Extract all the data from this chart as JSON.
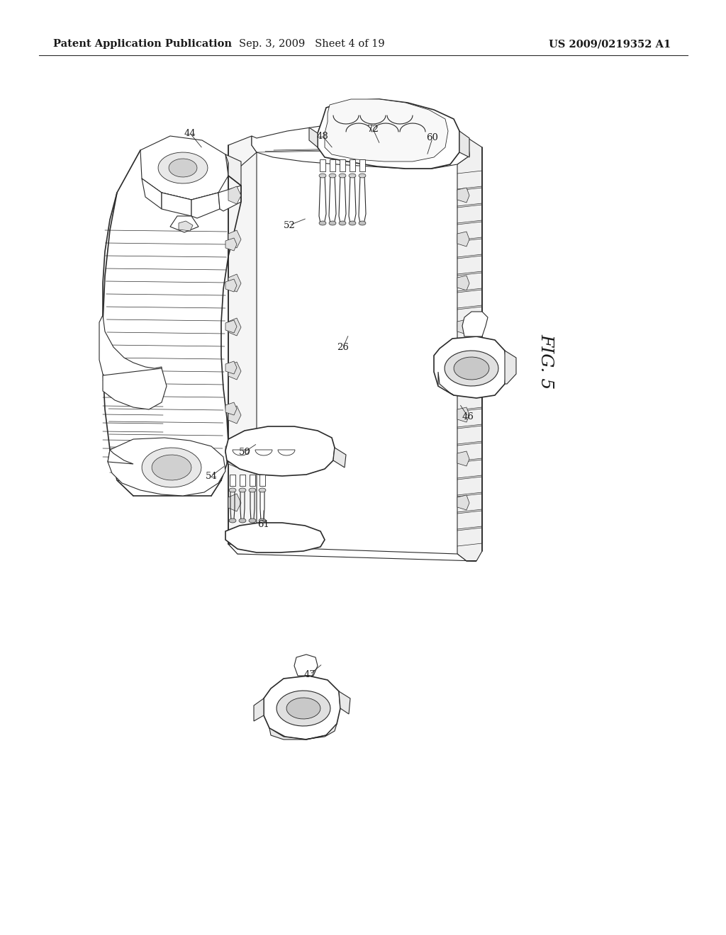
{
  "title_left": "Patent Application Publication",
  "title_center": "Sep. 3, 2009   Sheet 4 of 19",
  "title_right": "US 2009/0219352 A1",
  "fig_label": "FIG. 5",
  "background_color": "#ffffff",
  "line_color": "#2a2a2a",
  "text_color": "#1a1a1a",
  "header_fontsize": 10.5,
  "label_fontsize": 9.5,
  "fig_label_fontsize": 16
}
